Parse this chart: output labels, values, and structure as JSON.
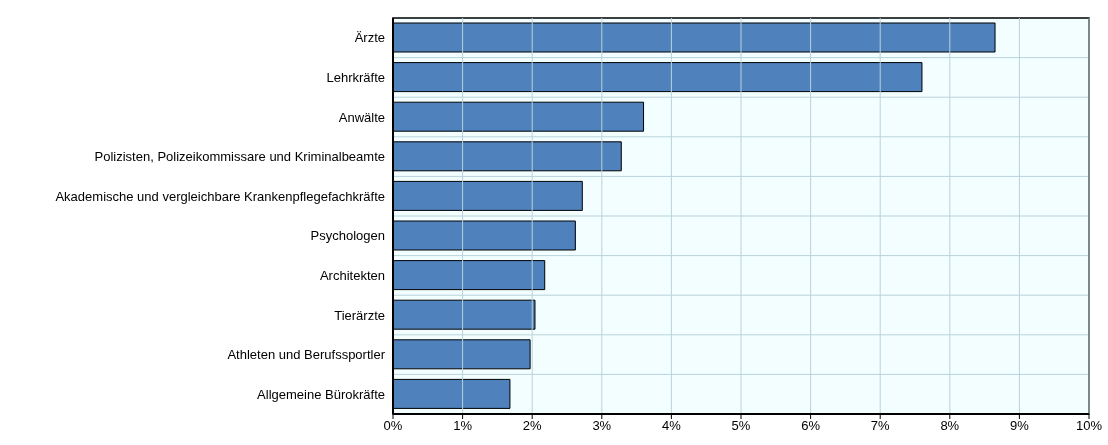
{
  "chart_data": {
    "type": "bar",
    "orientation": "horizontal",
    "categories": [
      "Ärzte",
      "Lehrkräfte",
      "Anwälte",
      "Polizisten, Polizeikommissare und Kriminalbeamte",
      "Akademische und vergleichbare Krankenpflegefachkräfte",
      "Psychologen",
      "Architekten",
      "Tierärzte",
      "Athleten und Berufssportler",
      "Allgemeine Bürokräfte"
    ],
    "values": [
      8.65,
      7.6,
      3.6,
      3.28,
      2.72,
      2.62,
      2.18,
      2.04,
      1.97,
      1.68
    ],
    "color": "#4f81bd",
    "xlim": [
      0,
      10
    ],
    "xticks": [
      {
        "value": 0,
        "label": "0%"
      },
      {
        "value": 1,
        "label": "1%"
      },
      {
        "value": 2,
        "label": "2%"
      },
      {
        "value": 3,
        "label": "3%"
      },
      {
        "value": 4,
        "label": "4%"
      },
      {
        "value": 5,
        "label": "5%"
      },
      {
        "value": 6,
        "label": "6%"
      },
      {
        "value": 7,
        "label": "7%"
      },
      {
        "value": 8,
        "label": "8%"
      },
      {
        "value": 9,
        "label": "9%"
      },
      {
        "value": 10,
        "label": "10%"
      }
    ],
    "grid": true
  }
}
